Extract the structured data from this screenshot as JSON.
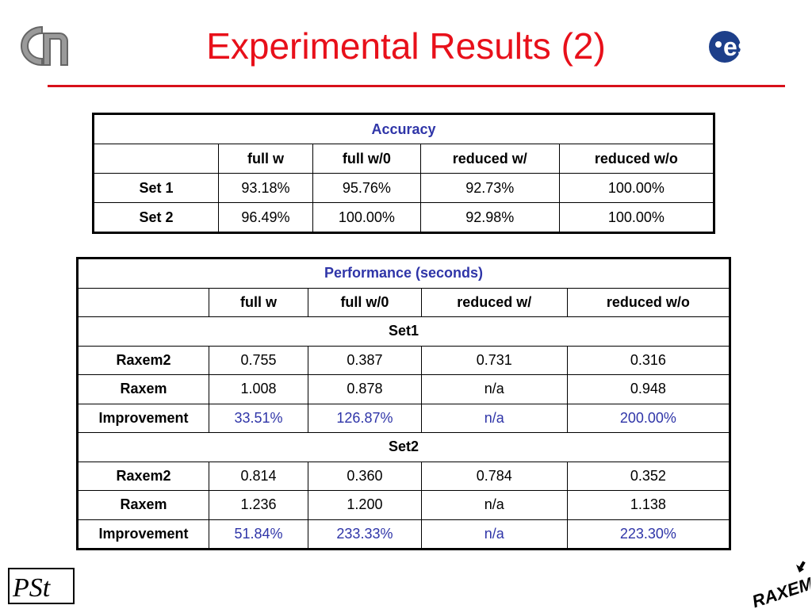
{
  "slide": {
    "title": "Experimental Results (2)"
  },
  "logos": {
    "esa_text": "esa",
    "pst_text": "PSt",
    "raxem_text": "RAXEM"
  },
  "accuracy": {
    "title": "Accuracy",
    "columns": [
      "",
      "full w",
      "full w/0",
      "reduced w/",
      "reduced w/o"
    ],
    "rows": [
      {
        "label": "Set 1",
        "values": [
          "93.18%",
          "95.76%",
          "92.73%",
          "100.00%"
        ]
      },
      {
        "label": "Set 2",
        "values": [
          "96.49%",
          "100.00%",
          "92.98%",
          "100.00%"
        ]
      }
    ]
  },
  "performance": {
    "title": "Performance (seconds)",
    "columns": [
      "",
      "full w",
      "full w/0",
      "reduced w/",
      "reduced w/o"
    ],
    "groups": [
      {
        "name": "Set1",
        "rows": [
          {
            "label": "Raxem2",
            "values": [
              "0.755",
              "0.387",
              "0.731",
              "0.316"
            ]
          },
          {
            "label": "Raxem",
            "values": [
              "1.008",
              "0.878",
              "n/a",
              "0.948"
            ]
          },
          {
            "label": "Improvement",
            "values": [
              "33.51%",
              "126.87%",
              "n/a",
              "200.00%"
            ]
          }
        ]
      },
      {
        "name": "Set2",
        "rows": [
          {
            "label": "Raxem2",
            "values": [
              "0.814",
              "0.360",
              "0.784",
              "0.352"
            ]
          },
          {
            "label": "Raxem",
            "values": [
              "1.236",
              "1.200",
              "n/a",
              "1.138"
            ]
          },
          {
            "label": "Improvement",
            "values": [
              "51.84%",
              "233.33%",
              "n/a",
              "223.30%"
            ]
          }
        ]
      }
    ]
  },
  "colors": {
    "title": "#e8101a",
    "header_blue": "#2f35a8",
    "rule": "#d8101a"
  }
}
